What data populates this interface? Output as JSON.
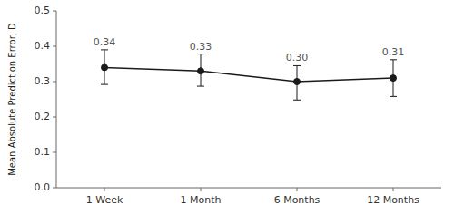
{
  "chart_data": {
    "type": "line",
    "categories": [
      "1 Week",
      "1 Month",
      "6 Months",
      "12 Months"
    ],
    "values": [
      0.34,
      0.33,
      0.3,
      0.31
    ],
    "error_upper": [
      0.05,
      0.048,
      0.045,
      0.052
    ],
    "error_lower": [
      0.048,
      0.043,
      0.052,
      0.052
    ],
    "data_labels": true,
    "value_labels": [
      "0.34",
      "0.33",
      "0.30",
      "0.31"
    ],
    "ylabel": "Mean Absolute Prediction Error, D",
    "ylim": [
      0.0,
      0.5
    ],
    "yticks": [
      {
        "value": 0.0,
        "label": "0.0"
      },
      0.1,
      0.2,
      0.3,
      0.4,
      0.5
    ],
    "color": "#1a1a1a",
    "marker": "circle"
  }
}
